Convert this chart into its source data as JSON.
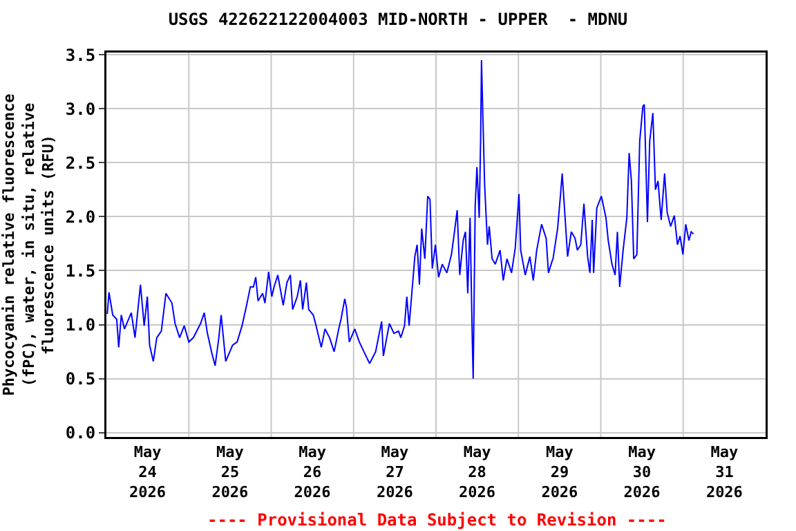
{
  "chart_data": {
    "type": "line",
    "title": "USGS 422622122004003 MID-NORTH - UPPER  - MDNU",
    "ylabel": "Phycocyanin relative fluorescence\n(fPC), water, in situ, relative\nfluorescence units (RFU)",
    "annotations": [
      "---- Provisional Data Subject to Revision ----"
    ],
    "x": [
      "2026-05-24T00:15",
      "2026-05-24T00:45",
      "2026-05-24T01:50",
      "2026-05-24T03:00",
      "2026-05-24T03:35",
      "2026-05-24T04:20",
      "2026-05-24T05:15",
      "2026-05-24T07:15",
      "2026-05-24T08:20",
      "2026-05-24T09:55",
      "2026-05-24T11:00",
      "2026-05-24T11:55",
      "2026-05-24T12:35",
      "2026-05-24T13:40",
      "2026-05-24T14:40",
      "2026-05-24T16:00",
      "2026-05-24T17:20",
      "2026-05-24T19:05",
      "2026-05-24T20:00",
      "2026-05-24T21:20",
      "2026-05-24T22:40",
      "2026-05-25T00:00",
      "2026-05-25T01:20",
      "2026-05-25T03:25",
      "2026-05-25T04:30",
      "2026-05-25T05:25",
      "2026-05-25T06:45",
      "2026-05-25T07:40",
      "2026-05-25T08:45",
      "2026-05-25T09:25",
      "2026-05-25T10:45",
      "2026-05-25T12:45",
      "2026-05-25T14:05",
      "2026-05-25T15:30",
      "2026-05-25T16:50",
      "2026-05-25T17:55",
      "2026-05-25T18:50",
      "2026-05-25T19:30",
      "2026-05-25T20:10",
      "2026-05-25T21:30",
      "2026-05-25T22:10",
      "2026-05-25T23:15",
      "2026-05-26T00:10",
      "2026-05-26T00:50",
      "2026-05-26T01:55",
      "2026-05-26T03:30",
      "2026-05-26T04:35",
      "2026-05-26T05:35",
      "2026-05-26T06:15",
      "2026-05-26T07:35",
      "2026-05-26T08:30",
      "2026-05-26T09:10",
      "2026-05-26T10:15",
      "2026-05-26T10:55",
      "2026-05-26T12:15",
      "2026-05-26T12:55",
      "2026-05-26T14:35",
      "2026-05-26T15:40",
      "2026-05-26T17:00",
      "2026-05-26T18:20",
      "2026-05-26T19:40",
      "2026-05-26T20:20",
      "2026-05-26T21:25",
      "2026-05-26T21:55",
      "2026-05-26T22:45",
      "2026-05-27T00:20",
      "2026-05-27T01:40",
      "2026-05-27T03:00",
      "2026-05-27T04:40",
      "2026-05-27T06:25",
      "2026-05-27T08:10",
      "2026-05-27T08:40",
      "2026-05-27T10:25",
      "2026-05-27T11:45",
      "2026-05-27T13:05",
      "2026-05-27T13:45",
      "2026-05-27T14:50",
      "2026-05-27T15:30",
      "2026-05-27T16:10",
      "2026-05-27T17:10",
      "2026-05-27T17:50",
      "2026-05-27T18:30",
      "2026-05-27T19:10",
      "2026-05-27T19:50",
      "2026-05-27T20:45",
      "2026-05-27T21:35",
      "2026-05-27T22:15",
      "2026-05-27T22:55",
      "2026-05-27T23:50",
      "2026-05-28T00:45",
      "2026-05-28T01:50",
      "2026-05-28T03:10",
      "2026-05-28T04:30",
      "2026-05-28T05:30",
      "2026-05-28T06:10",
      "2026-05-28T06:55",
      "2026-05-28T07:55",
      "2026-05-28T08:35",
      "2026-05-28T09:15",
      "2026-05-28T09:55",
      "2026-05-28T10:35",
      "2026-05-28T10:50",
      "2026-05-28T11:25",
      "2026-05-28T11:55",
      "2026-05-28T12:35",
      "2026-05-28T13:00",
      "2026-05-28T13:15",
      "2026-05-28T13:40",
      "2026-05-28T14:10",
      "2026-05-28T15:00",
      "2026-05-28T15:30",
      "2026-05-28T16:20",
      "2026-05-28T17:15",
      "2026-05-28T18:40",
      "2026-05-28T19:35",
      "2026-05-28T20:40",
      "2026-05-28T22:00",
      "2026-05-28T23:05",
      "2026-05-29T00:10",
      "2026-05-29T00:40",
      "2026-05-29T02:00",
      "2026-05-29T03:20",
      "2026-05-29T04:20",
      "2026-05-29T05:20",
      "2026-05-29T06:45",
      "2026-05-29T08:05",
      "2026-05-29T08:45",
      "2026-05-29T09:50",
      "2026-05-29T10:05",
      "2026-05-29T11:25",
      "2026-05-29T12:20",
      "2026-05-29T12:45",
      "2026-05-29T13:25",
      "2026-05-29T14:20",
      "2026-05-29T15:25",
      "2026-05-29T16:30",
      "2026-05-29T17:10",
      "2026-05-29T18:10",
      "2026-05-29T19:05",
      "2026-05-29T20:10",
      "2026-05-29T20:50",
      "2026-05-29T21:30",
      "2026-05-29T21:55",
      "2026-05-29T22:50",
      "2026-05-30T00:10",
      "2026-05-30T01:30",
      "2026-05-30T02:10",
      "2026-05-30T03:15",
      "2026-05-30T04:10",
      "2026-05-30T04:50",
      "2026-05-30T05:30",
      "2026-05-30T06:30",
      "2026-05-30T07:35",
      "2026-05-30T08:15",
      "2026-05-30T08:55",
      "2026-05-30T09:35",
      "2026-05-30T10:30",
      "2026-05-30T11:20",
      "2026-05-30T12:15",
      "2026-05-30T12:40",
      "2026-05-30T13:35",
      "2026-05-30T14:15",
      "2026-05-30T15:10",
      "2026-05-30T15:55",
      "2026-05-30T16:40",
      "2026-05-30T17:35",
      "2026-05-30T18:35",
      "2026-05-30T19:20",
      "2026-05-30T20:20",
      "2026-05-30T21:25",
      "2026-05-30T22:20",
      "2026-05-30T23:05",
      "2026-05-30T23:55",
      "2026-05-31T00:45",
      "2026-05-31T01:40",
      "2026-05-31T02:20",
      "2026-05-31T03:00"
    ],
    "series": [
      {
        "color": "#0000ff",
        "values": [
          1.1,
          1.3,
          1.09,
          1.05,
          0.79,
          1.09,
          0.96,
          1.11,
          0.88,
          1.37,
          0.99,
          1.26,
          0.81,
          0.66,
          0.88,
          0.94,
          1.29,
          1.2,
          1.01,
          0.88,
          0.99,
          0.84,
          0.88,
          1.01,
          1.11,
          0.92,
          0.73,
          0.62,
          0.88,
          1.09,
          0.66,
          0.81,
          0.84,
          0.99,
          1.18,
          1.35,
          1.35,
          1.44,
          1.22,
          1.29,
          1.2,
          1.49,
          1.26,
          1.35,
          1.46,
          1.18,
          1.39,
          1.46,
          1.14,
          1.26,
          1.41,
          1.14,
          1.39,
          1.14,
          1.09,
          1.01,
          0.79,
          0.96,
          0.88,
          0.75,
          0.96,
          1.05,
          1.24,
          1.16,
          0.84,
          0.96,
          0.84,
          0.75,
          0.64,
          0.75,
          1.03,
          0.71,
          1.01,
          0.92,
          0.94,
          0.88,
          0.99,
          1.26,
          0.99,
          1.37,
          1.63,
          1.74,
          1.37,
          1.89,
          1.61,
          2.19,
          2.16,
          1.52,
          1.74,
          1.44,
          1.56,
          1.48,
          1.65,
          1.89,
          2.06,
          1.46,
          1.78,
          1.86,
          1.29,
          1.99,
          0.84,
          0.5,
          2.1,
          2.46,
          1.99,
          2.72,
          3.45,
          2.91,
          2.29,
          1.74,
          1.91,
          1.61,
          1.56,
          1.69,
          1.41,
          1.61,
          1.48,
          1.71,
          2.21,
          1.69,
          1.46,
          1.63,
          1.41,
          1.69,
          1.93,
          1.8,
          1.48,
          1.59,
          1.61,
          1.89,
          2.23,
          2.4,
          2.08,
          1.63,
          1.86,
          1.8,
          1.69,
          1.74,
          2.12,
          1.63,
          1.48,
          1.97,
          1.48,
          2.08,
          2.19,
          1.99,
          1.78,
          1.56,
          1.46,
          1.86,
          1.35,
          1.69,
          1.99,
          2.59,
          2.33,
          1.61,
          1.65,
          2.7,
          3.02,
          3.04,
          1.95,
          2.7,
          2.96,
          2.25,
          2.33,
          1.97,
          2.4,
          2.04,
          1.91,
          2.01,
          1.74,
          1.82,
          1.65,
          1.93,
          1.78,
          1.86,
          1.84
        ]
      }
    ],
    "xlim": [
      "2026-05-24T00:00",
      "2026-06-01T00:00"
    ],
    "xticks": [
      {
        "value": "2026-05-24T12:00",
        "label": "May\n24\n2026"
      },
      {
        "value": "2026-05-25T12:00",
        "label": "May\n25\n2026"
      },
      {
        "value": "2026-05-26T12:00",
        "label": "May\n26\n2026"
      },
      {
        "value": "2026-05-27T12:00",
        "label": "May\n27\n2026"
      },
      {
        "value": "2026-05-28T12:00",
        "label": "May\n28\n2026"
      },
      {
        "value": "2026-05-29T12:00",
        "label": "May\n29\n2026"
      },
      {
        "value": "2026-05-30T12:00",
        "label": "May\n30\n2026"
      },
      {
        "value": "2026-05-31T12:00",
        "label": "May\n31\n2026"
      },
      {
        "value": "2026-05-25T00:00",
        "label": null
      },
      {
        "value": "2026-05-26T00:00",
        "label": null
      },
      {
        "value": "2026-05-27T00:00",
        "label": null
      },
      {
        "value": "2026-05-28T00:00",
        "label": null
      },
      {
        "value": "2026-05-29T00:00",
        "label": null
      },
      {
        "value": "2026-05-30T00:00",
        "label": null
      },
      {
        "value": "2026-05-31T00:00",
        "label": null
      }
    ],
    "ylim": [
      -0.04,
      3.52
    ],
    "yticks": [
      {
        "value": 0,
        "label": "0.0"
      },
      0.5,
      {
        "value": 1,
        "label": "1.0"
      },
      1.5,
      {
        "value": 2,
        "label": "2.0"
      },
      2.5,
      {
        "value": 3,
        "label": "3.0"
      },
      3.5
    ],
    "grid": true,
    "marker": "none",
    "line_style": "solid"
  }
}
